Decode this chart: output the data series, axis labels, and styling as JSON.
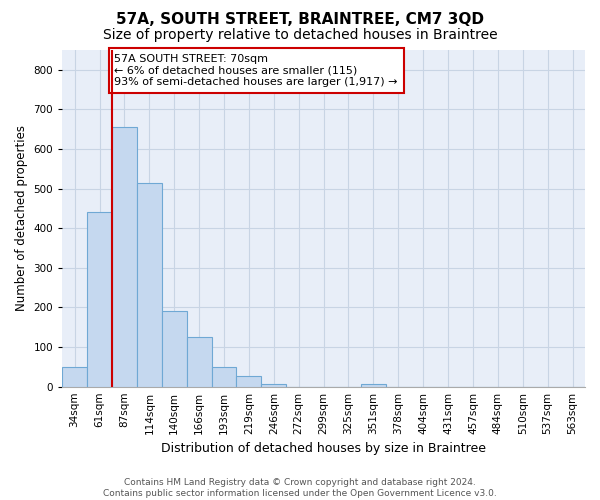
{
  "title": "57A, SOUTH STREET, BRAINTREE, CM7 3QD",
  "subtitle": "Size of property relative to detached houses in Braintree",
  "xlabel": "Distribution of detached houses by size in Braintree",
  "ylabel": "Number of detached properties",
  "categories": [
    "34sqm",
    "61sqm",
    "87sqm",
    "114sqm",
    "140sqm",
    "166sqm",
    "193sqm",
    "219sqm",
    "246sqm",
    "272sqm",
    "299sqm",
    "325sqm",
    "351sqm",
    "378sqm",
    "404sqm",
    "431sqm",
    "457sqm",
    "484sqm",
    "510sqm",
    "537sqm",
    "563sqm"
  ],
  "values": [
    50,
    440,
    655,
    515,
    190,
    125,
    50,
    27,
    8,
    0,
    0,
    0,
    7,
    0,
    0,
    0,
    0,
    0,
    0,
    0,
    0
  ],
  "bar_color": "#c5d8ef",
  "bar_edge_color": "#6fa8d4",
  "annotation_text": "57A SOUTH STREET: 70sqm\n← 6% of detached houses are smaller (115)\n93% of semi-detached houses are larger (1,917) →",
  "annotation_box_color": "#ffffff",
  "annotation_box_edge": "#cc0000",
  "vline_x_index": 1,
  "vline_color": "#cc0000",
  "ylim": [
    0,
    850
  ],
  "yticks": [
    0,
    100,
    200,
    300,
    400,
    500,
    600,
    700,
    800
  ],
  "grid_color": "#c8d4e4",
  "background_color": "#e8eef8",
  "footer": "Contains HM Land Registry data © Crown copyright and database right 2024.\nContains public sector information licensed under the Open Government Licence v3.0.",
  "title_fontsize": 11,
  "subtitle_fontsize": 10,
  "xlabel_fontsize": 9,
  "ylabel_fontsize": 8.5,
  "tick_fontsize": 7.5,
  "annotation_fontsize": 8,
  "footer_fontsize": 6.5
}
